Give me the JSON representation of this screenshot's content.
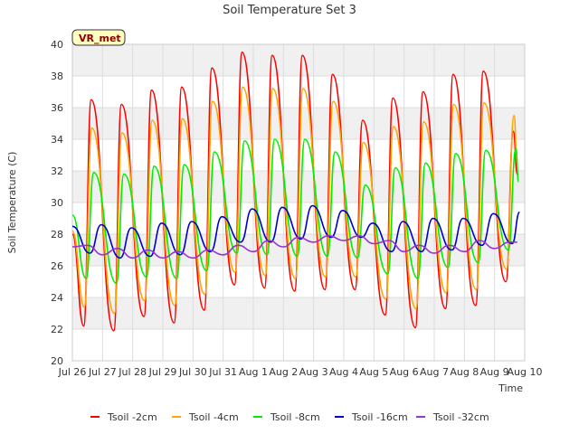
{
  "chart_data": {
    "type": "line",
    "title": "Soil Temperature Set 3",
    "xlabel": "Time",
    "ylabel": "Soil Temperature (C)",
    "badge": "VR_met",
    "ylim": [
      20,
      40
    ],
    "yticks": [
      20,
      22,
      24,
      26,
      28,
      30,
      32,
      34,
      36,
      38,
      40
    ],
    "xlim": [
      "2024-07-26",
      "2024-08-10"
    ],
    "xticks": [
      "Jul 26",
      "Jul 27",
      "Jul 28",
      "Jul 29",
      "Jul 30",
      "Jul 31",
      "Aug 1",
      "Aug 2",
      "Aug 3",
      "Aug 4",
      "Aug 5",
      "Aug 6",
      "Aug 7",
      "Aug 8",
      "Aug 9",
      "Aug 10"
    ],
    "grid": true,
    "legend_position": "bottom",
    "series": [
      {
        "name": "Tsoil -2cm",
        "color": "#ff0000",
        "x": [
          "2024-07-26 00:00",
          "2024-07-26 09:00",
          "2024-07-26 15:00",
          "2024-07-27 09:00",
          "2024-07-27 15:00",
          "2024-07-28 09:00",
          "2024-07-28 15:00",
          "2024-07-29 09:00",
          "2024-07-29 15:00",
          "2024-07-30 09:00",
          "2024-07-30 15:00",
          "2024-07-31 09:00",
          "2024-07-31 15:00",
          "2024-08-01 09:00",
          "2024-08-01 15:00",
          "2024-08-02 09:00",
          "2024-08-02 15:00",
          "2024-08-03 09:00",
          "2024-08-03 15:00",
          "2024-08-04 09:00",
          "2024-08-04 15:00",
          "2024-08-05 09:00",
          "2024-08-05 15:00",
          "2024-08-06 09:00",
          "2024-08-06 15:00",
          "2024-08-07 09:00",
          "2024-08-07 15:00",
          "2024-08-08 09:00",
          "2024-08-08 15:00",
          "2024-08-09 09:00",
          "2024-08-09 15:00",
          "2024-08-09 18:00"
        ],
        "y": [
          28.0,
          22.2,
          36.5,
          21.9,
          36.2,
          22.8,
          37.1,
          22.4,
          37.3,
          23.2,
          38.5,
          24.8,
          39.5,
          24.6,
          39.3,
          24.4,
          39.3,
          24.5,
          38.1,
          24.5,
          35.2,
          22.9,
          36.6,
          22.1,
          37.0,
          23.3,
          38.1,
          23.5,
          38.3,
          25.0,
          34.5,
          31.8
        ]
      },
      {
        "name": "Tsoil -4cm",
        "color": "#ffa500",
        "x": [
          "2024-07-26 00:00",
          "2024-07-26 09:30",
          "2024-07-26 15:30",
          "2024-07-27 09:30",
          "2024-07-27 15:30",
          "2024-07-28 09:30",
          "2024-07-28 15:30",
          "2024-07-29 09:30",
          "2024-07-29 15:30",
          "2024-07-30 09:30",
          "2024-07-30 15:30",
          "2024-07-31 09:30",
          "2024-07-31 15:30",
          "2024-08-01 09:30",
          "2024-08-01 15:30",
          "2024-08-02 09:30",
          "2024-08-02 15:30",
          "2024-08-03 09:30",
          "2024-08-03 15:30",
          "2024-08-04 09:30",
          "2024-08-04 15:30",
          "2024-08-05 09:30",
          "2024-08-05 15:30",
          "2024-08-06 09:30",
          "2024-08-06 15:30",
          "2024-08-07 09:30",
          "2024-08-07 15:30",
          "2024-08-08 09:30",
          "2024-08-08 15:30",
          "2024-08-09 09:30",
          "2024-08-09 15:30",
          "2024-08-09 18:00"
        ],
        "y": [
          28.2,
          23.4,
          34.7,
          23.0,
          34.4,
          23.8,
          35.2,
          23.5,
          35.3,
          24.2,
          36.4,
          25.6,
          37.3,
          25.4,
          37.2,
          25.2,
          37.2,
          25.3,
          36.4,
          25.3,
          33.8,
          23.9,
          34.8,
          23.3,
          35.1,
          24.3,
          36.2,
          24.5,
          36.3,
          25.8,
          35.5,
          32.5
        ]
      },
      {
        "name": "Tsoil -8cm",
        "color": "#00ee00",
        "x": [
          "2024-07-26 00:00",
          "2024-07-26 11:00",
          "2024-07-26 17:00",
          "2024-07-27 11:00",
          "2024-07-27 17:00",
          "2024-07-28 11:00",
          "2024-07-28 17:00",
          "2024-07-29 11:00",
          "2024-07-29 17:00",
          "2024-07-30 11:00",
          "2024-07-30 17:00",
          "2024-07-31 11:00",
          "2024-07-31 17:00",
          "2024-08-01 11:00",
          "2024-08-01 17:00",
          "2024-08-02 11:00",
          "2024-08-02 17:00",
          "2024-08-03 11:00",
          "2024-08-03 17:00",
          "2024-08-04 11:00",
          "2024-08-04 17:00",
          "2024-08-05 11:00",
          "2024-08-05 17:00",
          "2024-08-06 11:00",
          "2024-08-06 17:00",
          "2024-08-07 11:00",
          "2024-08-07 17:00",
          "2024-08-08 11:00",
          "2024-08-08 17:00",
          "2024-08-09 11:00",
          "2024-08-09 17:00",
          "2024-08-09 19:00"
        ],
        "y": [
          29.2,
          25.2,
          31.9,
          24.9,
          31.8,
          25.3,
          32.3,
          25.2,
          32.4,
          25.7,
          33.2,
          26.8,
          33.9,
          26.7,
          34.0,
          26.6,
          34.0,
          26.6,
          33.2,
          26.5,
          31.1,
          25.5,
          32.2,
          25.2,
          32.5,
          25.9,
          33.1,
          26.2,
          33.3,
          27.0,
          33.4,
          31.3
        ]
      },
      {
        "name": "Tsoil -16cm",
        "color": "#0000cc",
        "x": [
          "2024-07-26 00:00",
          "2024-07-26 14:00",
          "2024-07-26 23:00",
          "2024-07-27 14:00",
          "2024-07-27 23:00",
          "2024-07-28 14:00",
          "2024-07-28 23:00",
          "2024-07-29 14:00",
          "2024-07-29 23:00",
          "2024-07-30 14:00",
          "2024-07-30 23:00",
          "2024-07-31 14:00",
          "2024-07-31 23:00",
          "2024-08-01 14:00",
          "2024-08-01 23:00",
          "2024-08-02 14:00",
          "2024-08-02 23:00",
          "2024-08-03 14:00",
          "2024-08-03 23:00",
          "2024-08-04 14:00",
          "2024-08-04 23:00",
          "2024-08-05 14:00",
          "2024-08-05 23:00",
          "2024-08-06 14:00",
          "2024-08-06 23:00",
          "2024-08-07 14:00",
          "2024-08-07 23:00",
          "2024-08-08 14:00",
          "2024-08-08 23:00",
          "2024-08-09 14:00",
          "2024-08-09 20:00"
        ],
        "y": [
          28.5,
          26.8,
          28.6,
          26.5,
          28.4,
          26.6,
          28.7,
          26.7,
          28.8,
          26.9,
          29.1,
          27.5,
          29.6,
          27.5,
          29.7,
          27.7,
          29.8,
          27.8,
          29.5,
          27.8,
          28.7,
          26.9,
          28.8,
          26.9,
          29.0,
          27.0,
          29.0,
          27.3,
          29.3,
          27.4,
          29.4
        ]
      },
      {
        "name": "Tsoil -32cm",
        "color": "#9933cc",
        "x": [
          "2024-07-26 00:00",
          "2024-07-26 12:00",
          "2024-07-27 00:00",
          "2024-07-27 12:00",
          "2024-07-28 00:00",
          "2024-07-28 12:00",
          "2024-07-29 00:00",
          "2024-07-29 12:00",
          "2024-07-30 00:00",
          "2024-07-30 12:00",
          "2024-07-31 00:00",
          "2024-07-31 12:00",
          "2024-08-01 00:00",
          "2024-08-01 12:00",
          "2024-08-02 00:00",
          "2024-08-02 12:00",
          "2024-08-03 00:00",
          "2024-08-03 12:00",
          "2024-08-04 00:00",
          "2024-08-04 12:00",
          "2024-08-05 00:00",
          "2024-08-05 12:00",
          "2024-08-06 00:00",
          "2024-08-06 12:00",
          "2024-08-07 00:00",
          "2024-08-07 12:00",
          "2024-08-08 00:00",
          "2024-08-08 12:00",
          "2024-08-09 00:00",
          "2024-08-09 12:00",
          "2024-08-09 18:00"
        ],
        "y": [
          27.2,
          27.3,
          26.7,
          27.1,
          26.5,
          27.0,
          26.5,
          26.9,
          26.5,
          27.0,
          26.7,
          27.3,
          26.9,
          27.6,
          27.2,
          27.8,
          27.5,
          27.9,
          27.6,
          27.9,
          27.4,
          27.6,
          26.9,
          27.3,
          26.8,
          27.3,
          26.9,
          27.6,
          27.1,
          27.5,
          27.5
        ]
      }
    ]
  }
}
